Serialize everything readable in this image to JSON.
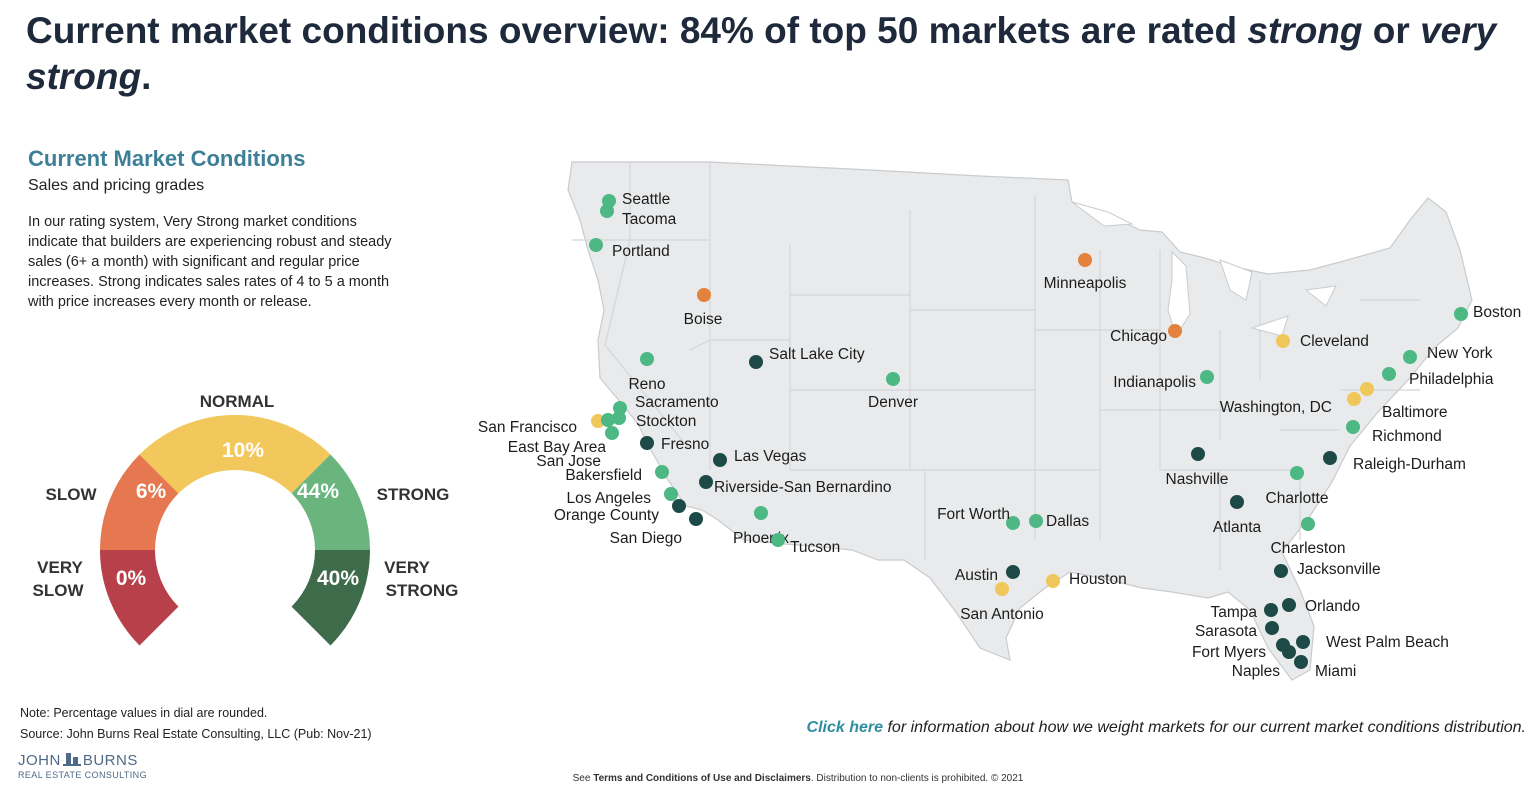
{
  "header": {
    "title_a": "Current market conditions overview: 84% of top 50 markets are rated ",
    "title_b": "strong",
    "title_c": " or ",
    "title_d": "very strong",
    "title_e": "."
  },
  "panel": {
    "title": "Current Market Conditions",
    "subtitle": "Sales and pricing grades",
    "description": "In our rating system, Very Strong market conditions indicate that builders are experiencing robust and steady sales (6+ a month) with significant and regular price increases. Strong indicates sales rates of 4 to 5 a month with price increases every month or release."
  },
  "dial": {
    "segments": [
      {
        "label_line1": "VERY",
        "label_line2": "SLOW",
        "value": "0%",
        "color": "#b8404a"
      },
      {
        "label_line1": "SLOW",
        "label_line2": "",
        "value": "6%",
        "color": "#e57850"
      },
      {
        "label_line1": "NORMAL",
        "label_line2": "",
        "value": "10%",
        "color": "#f2c75c"
      },
      {
        "label_line1": "STRONG",
        "label_line2": "",
        "value": "44%",
        "color": "#6ab57e"
      },
      {
        "label_line1": "VERY",
        "label_line2": "STRONG",
        "value": "40%",
        "color": "#3e6b4a"
      }
    ]
  },
  "legend_colors": {
    "very_strong": "#1d4a47",
    "strong": "#4db884",
    "normal": "#f0c75a",
    "slow": "#e2823d"
  },
  "map": {
    "markets": [
      {
        "name": "Seattle",
        "grade": "strong"
      },
      {
        "name": "Tacoma",
        "grade": "strong"
      },
      {
        "name": "Portland",
        "grade": "strong"
      },
      {
        "name": "Boise",
        "grade": "slow"
      },
      {
        "name": "Reno",
        "grade": "strong"
      },
      {
        "name": "Sacramento",
        "grade": "strong"
      },
      {
        "name": "Stockton",
        "grade": "strong"
      },
      {
        "name": "San Francisco",
        "grade": "normal"
      },
      {
        "name": "East Bay Area",
        "grade": "strong"
      },
      {
        "name": "San Jose",
        "grade": "strong"
      },
      {
        "name": "Fresno",
        "grade": "very_strong"
      },
      {
        "name": "Bakersfield",
        "grade": "strong"
      },
      {
        "name": "Los Angeles",
        "grade": "strong"
      },
      {
        "name": "Orange County",
        "grade": "very_strong"
      },
      {
        "name": "San Diego",
        "grade": "very_strong"
      },
      {
        "name": "Riverside-San Bernardino",
        "grade": "very_strong"
      },
      {
        "name": "Las Vegas",
        "grade": "very_strong"
      },
      {
        "name": "Salt Lake City",
        "grade": "very_strong"
      },
      {
        "name": "Phoenix",
        "grade": "strong"
      },
      {
        "name": "Tucson",
        "grade": "strong"
      },
      {
        "name": "Denver",
        "grade": "strong"
      },
      {
        "name": "Minneapolis",
        "grade": "slow"
      },
      {
        "name": "Chicago",
        "grade": "slow"
      },
      {
        "name": "Indianapolis",
        "grade": "strong"
      },
      {
        "name": "Cleveland",
        "grade": "normal"
      },
      {
        "name": "Boston",
        "grade": "strong"
      },
      {
        "name": "New York",
        "grade": "strong"
      },
      {
        "name": "Philadelphia",
        "grade": "strong"
      },
      {
        "name": "Baltimore",
        "grade": "normal"
      },
      {
        "name": "Washington, DC",
        "grade": "normal"
      },
      {
        "name": "Richmond",
        "grade": "strong"
      },
      {
        "name": "Raleigh-Durham",
        "grade": "very_strong"
      },
      {
        "name": "Nashville",
        "grade": "very_strong"
      },
      {
        "name": "Charlotte",
        "grade": "strong"
      },
      {
        "name": "Atlanta",
        "grade": "very_strong"
      },
      {
        "name": "Charleston",
        "grade": "strong"
      },
      {
        "name": "Fort Worth",
        "grade": "strong"
      },
      {
        "name": "Dallas",
        "grade": "strong"
      },
      {
        "name": "Austin",
        "grade": "very_strong"
      },
      {
        "name": "San Antonio",
        "grade": "normal"
      },
      {
        "name": "Houston",
        "grade": "normal"
      },
      {
        "name": "Jacksonville",
        "grade": "very_strong"
      },
      {
        "name": "Orlando",
        "grade": "very_strong"
      },
      {
        "name": "Tampa",
        "grade": "very_strong"
      },
      {
        "name": "Sarasota",
        "grade": "very_strong"
      },
      {
        "name": "Fort Myers",
        "grade": "very_strong"
      },
      {
        "name": "Naples",
        "grade": "very_strong"
      },
      {
        "name": "West Palm Beach",
        "grade": "very_strong"
      },
      {
        "name": "Miami",
        "grade": "very_strong"
      }
    ]
  },
  "notes": {
    "note": "Note: Percentage values in dial are rounded.",
    "source": "Source: John Burns Real Estate Consulting, LLC (Pub: Nov-21)"
  },
  "logo": {
    "line1a": "JOHN",
    "line1b": "BURNS",
    "line2": "REAL ESTATE CONSULTING"
  },
  "click_here": {
    "link": "Click here",
    "rest": " for information about how we weight markets for our current market conditions distribution."
  },
  "footer": {
    "pre": "See ",
    "bold": "Terms and Conditions of Use and Disclaimers",
    "post": ". Distribution to non-clients is prohibited. © 2021"
  }
}
